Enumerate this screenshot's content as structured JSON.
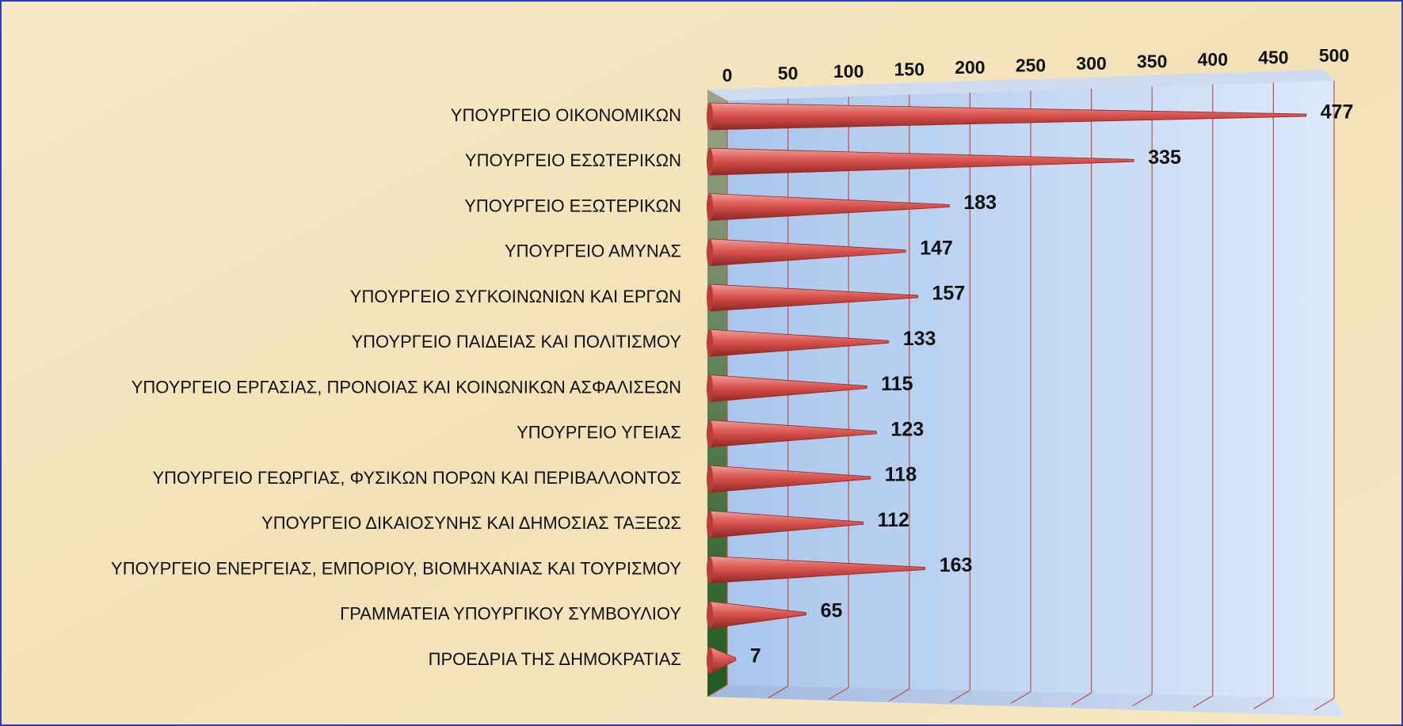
{
  "chart_data": {
    "type": "bar",
    "categories": [
      "ΥΠΟΥΡΓΕΙΟ ΟΙΚΟΝΟΜΙΚΩΝ",
      "ΥΠΟΥΡΓΕΙΟ ΕΣΩΤΕΡΙΚΩΝ",
      "ΥΠΟΥΡΓΕΙΟ ΕΞΩΤΕΡΙΚΩΝ",
      "ΥΠΟΥΡΓΕΙΟ ΑΜΥΝΑΣ",
      "ΥΠΟΥΡΓΕΙΟ ΣΥΓΚΟΙΝΩΝΙΩΝ ΚΑΙ ΕΡΓΩΝ",
      "ΥΠΟΥΡΓΕΙΟ ΠΑΙΔΕΙΑΣ ΚΑΙ ΠΟΛΙΤΙΣΜΟΥ",
      "ΥΠΟΥΡΓΕΙΟ ΕΡΓΑΣΙΑΣ, ΠΡΟΝΟΙΑΣ ΚΑΙ ΚΟΙΝΩΝΙΚΩΝ ΑΣΦΑΛΙΣΕΩΝ",
      "ΥΠΟΥΡΓΕΙΟ ΥΓΕΙΑΣ",
      "ΥΠΟΥΡΓΕΙΟ ΓΕΩΡΓΙΑΣ, ΦΥΣΙΚΩΝ ΠΟΡΩΝ ΚΑΙ ΠΕΡΙΒΑΛΛΟΝΤΟΣ",
      "ΥΠΟΥΡΓΕΙΟ ΔΙΚΑΙΟΣΥΝΗΣ ΚΑΙ ΔΗΜΟΣΙΑΣ ΤΑΞΕΩΣ",
      "ΥΠΟΥΡΓΕΙΟ ΕΝΕΡΓΕΙΑΣ, ΕΜΠΟΡΙΟΥ, ΒΙΟΜΗΧΑΝΙΑΣ ΚΑΙ ΤΟΥΡΙΣΜΟΥ",
      "ΓΡΑΜΜΑΤΕΙΑ ΥΠΟΥΡΓΙΚΟΥ ΣΥΜΒΟΥΛΙΟΥ",
      "ΠΡΟΕΔΡΙΑ ΤΗΣ ΔΗΜΟΚΡΑΤΙΑΣ"
    ],
    "values": [
      477,
      335,
      183,
      147,
      157,
      133,
      115,
      123,
      118,
      112,
      163,
      65,
      7
    ],
    "color": "#d9534f",
    "xlim": [
      0,
      500
    ],
    "xticks": [
      0,
      50,
      100,
      150,
      200,
      250,
      300,
      350,
      400,
      450,
      500
    ],
    "grid": true
  }
}
